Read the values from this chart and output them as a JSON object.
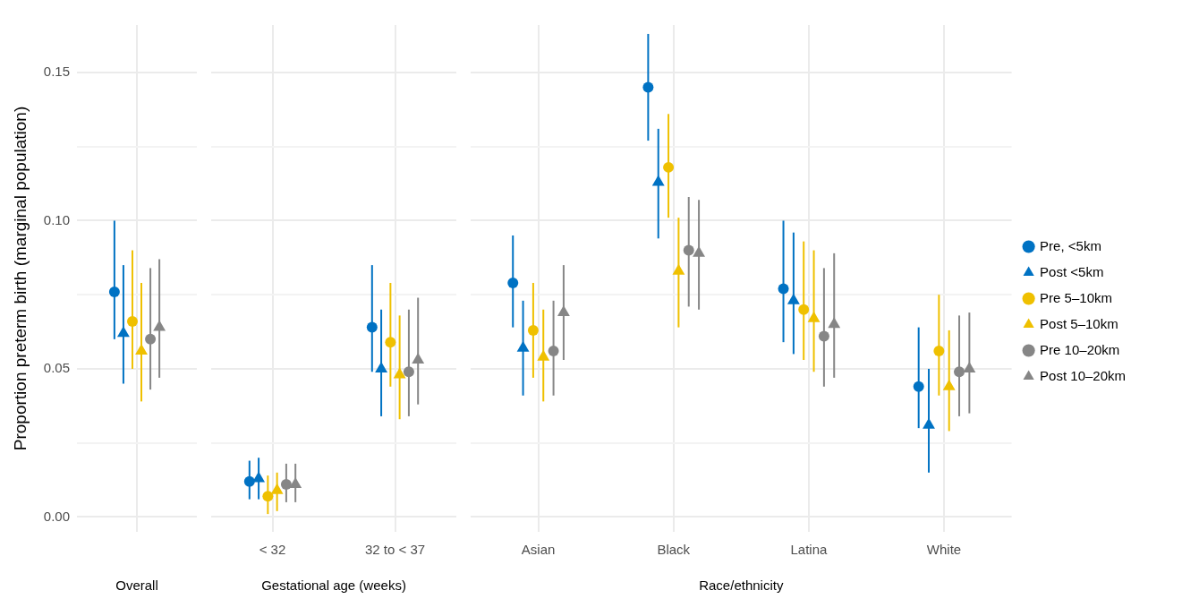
{
  "chart_data": [
    {
      "type": "scatter",
      "categories": [
        null
      ],
      "xlabel": "Overall",
      "ylabel": "Proportion preterm birth (marginal population)",
      "ylim": [
        -0.005,
        0.166
      ],
      "yticks": [
        {
          "value": 0,
          "label": "0.00"
        },
        {
          "value": 0.025,
          "label": null
        },
        {
          "value": 0.05,
          "label": "0.05"
        },
        {
          "value": 0.075,
          "label": null
        },
        {
          "value": 0.1,
          "label": "0.10"
        },
        {
          "value": 0.125,
          "label": null
        },
        {
          "value": 0.15,
          "label": "0.15"
        }
      ],
      "grid": true,
      "series": [
        {
          "color": "#0072c3",
          "marker": "circle",
          "values": [
            0.076
          ],
          "errors": [
            [
              0.06,
              0.1
            ]
          ]
        },
        {
          "color": "#0072c3",
          "marker": "triangle",
          "values": [
            0.062
          ],
          "errors": [
            [
              0.045,
              0.085
            ]
          ]
        },
        {
          "color": "#efc000",
          "marker": "circle",
          "values": [
            0.066
          ],
          "errors": [
            [
              0.05,
              0.09
            ]
          ]
        },
        {
          "color": "#efc000",
          "marker": "triangle",
          "values": [
            0.056
          ],
          "errors": [
            [
              0.039,
              0.079
            ]
          ]
        },
        {
          "color": "#868686",
          "marker": "circle",
          "values": [
            0.06
          ],
          "errors": [
            [
              0.043,
              0.084
            ]
          ]
        },
        {
          "color": "#868686",
          "marker": "triangle",
          "values": [
            0.064
          ],
          "errors": [
            [
              0.047,
              0.087
            ]
          ]
        }
      ]
    },
    {
      "type": "scatter",
      "categories": [
        "< 32",
        "32 to < 37"
      ],
      "xlabel": "Gestational age (weeks)",
      "ylim": [
        -0.005,
        0.166
      ],
      "yticks": [
        0,
        {
          "value": 0.025,
          "label": null
        },
        0.05,
        {
          "value": 0.075,
          "label": null
        },
        0.1,
        {
          "value": 0.125,
          "label": null
        },
        0.15
      ],
      "grid": true,
      "tick_labels": "x",
      "series": [
        {
          "color": "#0072c3",
          "marker": "circle",
          "values": [
            0.012,
            0.064
          ],
          "errors": [
            [
              0.006,
              0.019
            ],
            [
              0.049,
              0.085
            ]
          ]
        },
        {
          "color": "#0072c3",
          "marker": "triangle",
          "values": [
            0.013,
            0.05
          ],
          "errors": [
            [
              0.006,
              0.02
            ],
            [
              0.034,
              0.07
            ]
          ]
        },
        {
          "color": "#efc000",
          "marker": "circle",
          "values": [
            0.007,
            0.059
          ],
          "errors": [
            [
              0.001,
              0.014
            ],
            [
              0.044,
              0.079
            ]
          ]
        },
        {
          "color": "#efc000",
          "marker": "triangle",
          "values": [
            0.009,
            0.048
          ],
          "errors": [
            [
              0.002,
              0.015
            ],
            [
              0.033,
              0.068
            ]
          ]
        },
        {
          "color": "#868686",
          "marker": "circle",
          "values": [
            0.011,
            0.049
          ],
          "errors": [
            [
              0.005,
              0.018
            ],
            [
              0.034,
              0.07
            ]
          ]
        },
        {
          "color": "#868686",
          "marker": "triangle",
          "values": [
            0.011,
            0.053
          ],
          "errors": [
            [
              0.005,
              0.018
            ],
            [
              0.038,
              0.074
            ]
          ]
        }
      ]
    },
    {
      "type": "scatter",
      "categories": [
        "Asian",
        "Black",
        "Latina",
        "White"
      ],
      "xlabel": "Race/ethnicity",
      "ylim": [
        -0.005,
        0.166
      ],
      "yticks": [
        0,
        {
          "value": 0.025,
          "label": null
        },
        0.05,
        {
          "value": 0.075,
          "label": null
        },
        0.1,
        {
          "value": 0.125,
          "label": null
        },
        0.15
      ],
      "grid": true,
      "tick_labels": "x",
      "legend": "right",
      "series": [
        {
          "name": "Pre, <5km",
          "color": "#0072c3",
          "marker": "circle",
          "values": [
            0.079,
            0.145,
            0.077,
            0.044
          ],
          "errors": [
            [
              0.064,
              0.095
            ],
            [
              0.127,
              0.163
            ],
            [
              0.059,
              0.1
            ],
            [
              0.03,
              0.064
            ]
          ]
        },
        {
          "name": "Post <5km",
          "color": "#0072c3",
          "marker": "triangle",
          "values": [
            0.057,
            0.113,
            0.073,
            0.031
          ],
          "errors": [
            [
              0.041,
              0.073
            ],
            [
              0.094,
              0.131
            ],
            [
              0.055,
              0.096
            ],
            [
              0.015,
              0.05
            ]
          ]
        },
        {
          "name": "Pre 5–10km",
          "color": "#efc000",
          "marker": "circle",
          "values": [
            0.063,
            0.118,
            0.07,
            0.056
          ],
          "errors": [
            [
              0.047,
              0.079
            ],
            [
              0.101,
              0.136
            ],
            [
              0.053,
              0.093
            ],
            [
              0.041,
              0.075
            ]
          ]
        },
        {
          "name": "Post 5–10km",
          "color": "#efc000",
          "marker": "triangle",
          "values": [
            0.054,
            0.083,
            0.067,
            0.044
          ],
          "errors": [
            [
              0.039,
              0.07
            ],
            [
              0.064,
              0.101
            ],
            [
              0.049,
              0.09
            ],
            [
              0.029,
              0.063
            ]
          ]
        },
        {
          "name": "Pre 10–20km",
          "color": "#868686",
          "marker": "circle",
          "values": [
            0.056,
            0.09,
            0.061,
            0.049
          ],
          "errors": [
            [
              0.041,
              0.073
            ],
            [
              0.071,
              0.108
            ],
            [
              0.044,
              0.084
            ],
            [
              0.034,
              0.068
            ]
          ]
        },
        {
          "name": "Post 10–20km",
          "color": "#868686",
          "marker": "triangle",
          "values": [
            0.069,
            0.089,
            0.065,
            0.05
          ],
          "errors": [
            [
              0.053,
              0.085
            ],
            [
              0.07,
              0.107
            ],
            [
              0.047,
              0.089
            ],
            [
              0.035,
              0.069
            ]
          ]
        }
      ]
    }
  ]
}
